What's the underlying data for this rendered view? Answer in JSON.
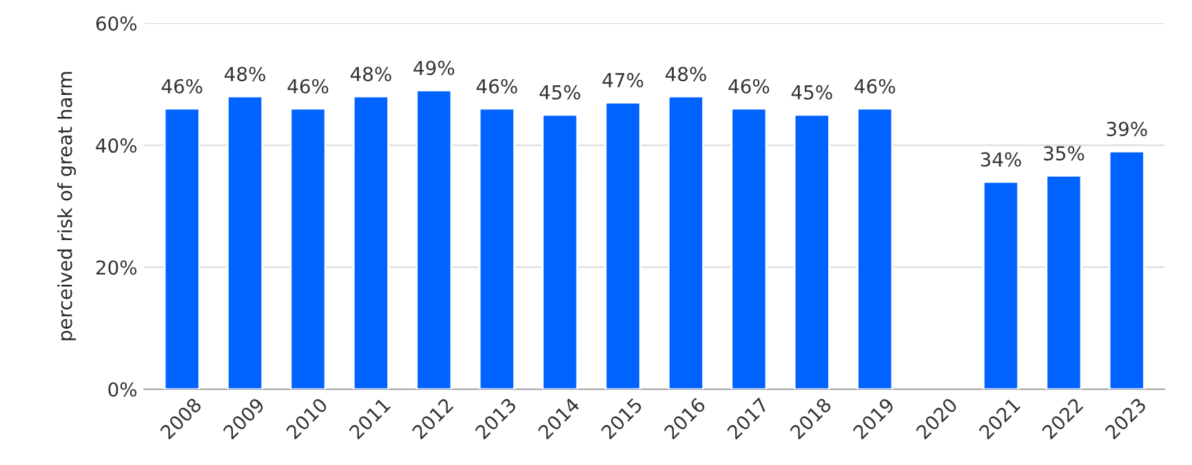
{
  "chart_data": {
    "type": "bar",
    "ylabel": "perceived risk of great harm",
    "categories": [
      "2008",
      "2009",
      "2010",
      "2011",
      "2012",
      "2013",
      "2014",
      "2015",
      "2016",
      "2017",
      "2018",
      "2019",
      "2020",
      "2021",
      "2022",
      "2023"
    ],
    "values": [
      46,
      48,
      46,
      48,
      49,
      46,
      45,
      47,
      48,
      46,
      45,
      46,
      null,
      34,
      35,
      39
    ],
    "value_labels": [
      "46%",
      "48%",
      "46%",
      "48%",
      "49%",
      "46%",
      "45%",
      "47%",
      "48%",
      "46%",
      "45%",
      "46%",
      null,
      "34%",
      "35%",
      "39%"
    ],
    "color": "#0062ff",
    "ylim": [
      0,
      60
    ],
    "yticks": [
      {
        "value": 0,
        "label": "0%"
      },
      {
        "value": 20,
        "label": "20%"
      },
      {
        "value": 40,
        "label": "40%"
      },
      {
        "value": 60,
        "label": "60%"
      }
    ],
    "grid": "y",
    "legend": false
  }
}
